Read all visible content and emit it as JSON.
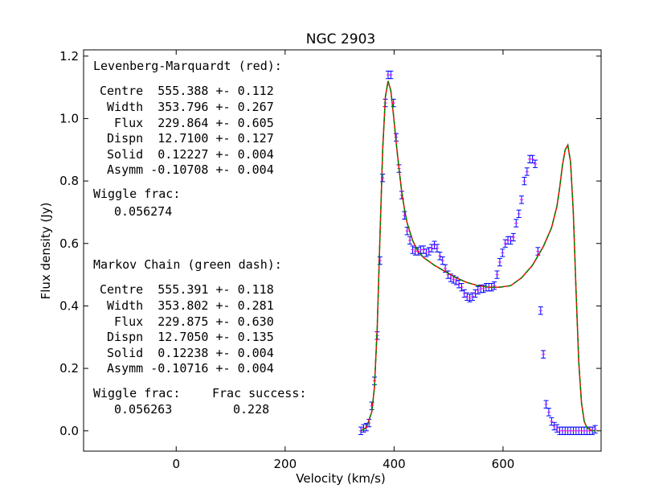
{
  "chart_data": {
    "type": "line",
    "title": "NGC 2903",
    "xlabel": "Velocity (km/s)",
    "ylabel": "Flux density (Jy)",
    "xlim": [
      -170,
      780
    ],
    "ylim": [
      -0.065,
      1.22
    ],
    "xticks": [
      0,
      200,
      400,
      600
    ],
    "yticks": [
      0.0,
      0.2,
      0.4,
      0.6,
      0.8,
      1.0,
      1.2
    ],
    "grid": false,
    "model_params": {
      "centre": 555.39,
      "width": 353.8,
      "flux": 229.87,
      "dispersion": 12.71,
      "solid": 0.1223,
      "asymm": -0.1071
    },
    "series": [
      {
        "name": "Observed spectrum",
        "color": "#0000ff",
        "style": "errorbar",
        "x": [
          339,
          344,
          349,
          354,
          359,
          364,
          369,
          374,
          379,
          384,
          389,
          394,
          399,
          404,
          409,
          414,
          419,
          424,
          429,
          434,
          439,
          444,
          449,
          454,
          459,
          464,
          469,
          474,
          479,
          484,
          489,
          494,
          499,
          504,
          509,
          514,
          519,
          524,
          529,
          534,
          539,
          544,
          549,
          554,
          559,
          564,
          569,
          574,
          579,
          584,
          589,
          594,
          599,
          604,
          609,
          614,
          619,
          624,
          629,
          634,
          639,
          644,
          649,
          654,
          659,
          664,
          669,
          674,
          679,
          684,
          689,
          694,
          699,
          704,
          709,
          714,
          719,
          724,
          729,
          734,
          739,
          744,
          749,
          754,
          759,
          764,
          769
        ],
        "y": [
          0.0,
          0.008,
          0.012,
          0.025,
          0.08,
          0.16,
          0.305,
          0.545,
          0.81,
          1.05,
          1.14,
          1.14,
          1.05,
          0.94,
          0.84,
          0.755,
          0.69,
          0.64,
          0.61,
          0.58,
          0.575,
          0.575,
          0.58,
          0.58,
          0.57,
          0.575,
          0.585,
          0.595,
          0.585,
          0.56,
          0.545,
          0.52,
          0.5,
          0.49,
          0.485,
          0.48,
          0.47,
          0.46,
          0.44,
          0.43,
          0.425,
          0.43,
          0.44,
          0.45,
          0.455,
          0.455,
          0.46,
          0.46,
          0.46,
          0.465,
          0.5,
          0.54,
          0.57,
          0.6,
          0.61,
          0.61,
          0.62,
          0.665,
          0.695,
          0.74,
          0.8,
          0.83,
          0.87,
          0.87,
          0.855,
          0.575,
          0.385,
          0.245,
          0.085,
          0.06,
          0.03,
          0.015,
          0.008,
          0.0,
          0.0,
          0.0,
          0.0,
          0.0,
          0.0,
          0.0,
          0.0,
          0.0,
          0.0,
          0.0,
          0.0,
          0.0,
          0.005
        ],
        "errors": 0.012,
        "error_cap_color": "#ff00ff"
      },
      {
        "name": "Levenberg-Marquardt fit",
        "color": "#ff0000",
        "style": "solid",
        "x": [
          339,
          349,
          359,
          364,
          369,
          374,
          379,
          384,
          389,
          394,
          399,
          404,
          409,
          414,
          419,
          424,
          434,
          444,
          454,
          474,
          494,
          514,
          534,
          554,
          574,
          594,
          614,
          634,
          654,
          674,
          689,
          699,
          704,
          709,
          714,
          719,
          724,
          729,
          734,
          739,
          744,
          749,
          754,
          764,
          769
        ],
        "y": [
          0.0,
          0.01,
          0.06,
          0.14,
          0.33,
          0.62,
          0.9,
          1.07,
          1.12,
          1.09,
          1.01,
          0.92,
          0.84,
          0.765,
          0.71,
          0.665,
          0.61,
          0.575,
          0.555,
          0.53,
          0.51,
          0.49,
          0.475,
          0.465,
          0.46,
          0.46,
          0.465,
          0.49,
          0.53,
          0.59,
          0.65,
          0.72,
          0.78,
          0.85,
          0.9,
          0.915,
          0.86,
          0.7,
          0.45,
          0.22,
          0.09,
          0.03,
          0.01,
          0.0,
          0.0
        ]
      },
      {
        "name": "Markov Chain fit",
        "color": "#008000",
        "style": "dash",
        "x": [
          339,
          349,
          359,
          364,
          369,
          374,
          379,
          384,
          389,
          394,
          399,
          404,
          409,
          414,
          419,
          424,
          434,
          444,
          454,
          474,
          494,
          514,
          534,
          554,
          574,
          594,
          614,
          634,
          654,
          674,
          689,
          699,
          704,
          709,
          714,
          719,
          724,
          729,
          734,
          739,
          744,
          749,
          754,
          764,
          769
        ],
        "y": [
          0.0,
          0.01,
          0.06,
          0.14,
          0.33,
          0.62,
          0.9,
          1.07,
          1.12,
          1.09,
          1.01,
          0.92,
          0.84,
          0.765,
          0.71,
          0.665,
          0.61,
          0.575,
          0.555,
          0.53,
          0.51,
          0.49,
          0.475,
          0.465,
          0.46,
          0.46,
          0.465,
          0.49,
          0.53,
          0.59,
          0.65,
          0.72,
          0.78,
          0.85,
          0.9,
          0.915,
          0.86,
          0.7,
          0.45,
          0.22,
          0.09,
          0.03,
          0.01,
          0.0,
          0.0
        ]
      }
    ],
    "annotations": {
      "lm_header": "Levenberg-Marquardt (red):",
      "lm_params": [
        "Centre  555.388 +- 0.112",
        " Width  353.796 +- 0.267",
        "  Flux  229.864 +- 0.605",
        " Dispn  12.7100 +- 0.127",
        " Solid  0.12227 +- 0.004",
        " Asymm -0.10708 +- 0.004"
      ],
      "lm_wiggle_label": "Wiggle frac:",
      "lm_wiggle_value": "0.056274",
      "mc_header": "Markov Chain (green dash):",
      "mc_params": [
        "Centre  555.391 +- 0.118",
        " Width  353.802 +- 0.281",
        "  Flux  229.875 +- 0.630",
        " Dispn  12.7050 +- 0.135",
        " Solid  0.12238 +- 0.004",
        " Asymm -0.10716 +- 0.004"
      ],
      "mc_wiggle_label": "Wiggle frac:",
      "mc_wiggle_value": "0.056263",
      "mc_success_label": "Frac success:",
      "mc_success_value": "0.228"
    }
  }
}
